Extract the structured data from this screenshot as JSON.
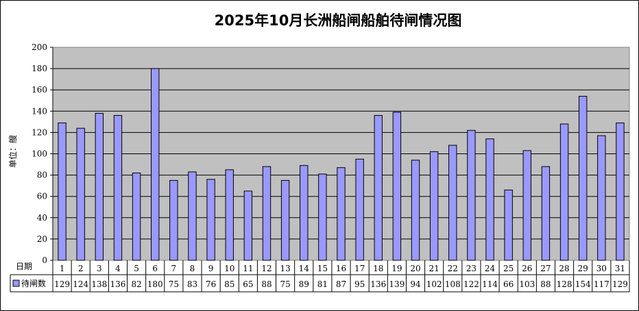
{
  "chart_data": {
    "type": "bar",
    "title": "2025年10月长洲船闸船舶待闸情况图",
    "ylabel": "单位：艘",
    "xlabel": "日期",
    "ylim": [
      0,
      200
    ],
    "yticks": [
      0,
      20,
      40,
      60,
      80,
      100,
      120,
      140,
      160,
      180,
      200
    ],
    "categories": [
      "1",
      "2",
      "3",
      "4",
      "5",
      "6",
      "7",
      "8",
      "9",
      "10",
      "11",
      "12",
      "13",
      "14",
      "15",
      "16",
      "17",
      "18",
      "19",
      "20",
      "21",
      "22",
      "23",
      "24",
      "25",
      "26",
      "27",
      "28",
      "29",
      "30",
      "31"
    ],
    "series": [
      {
        "name": "待闸数",
        "color": "#9999ff",
        "values": [
          129,
          124,
          138,
          136,
          82,
          180,
          75,
          83,
          76,
          85,
          65,
          88,
          75,
          89,
          81,
          87,
          95,
          136,
          139,
          94,
          102,
          108,
          122,
          114,
          66,
          103,
          88,
          128,
          154,
          117,
          129
        ]
      }
    ],
    "plot_background": "#c0c0c0",
    "grid": true,
    "legend": "data-table-key"
  }
}
